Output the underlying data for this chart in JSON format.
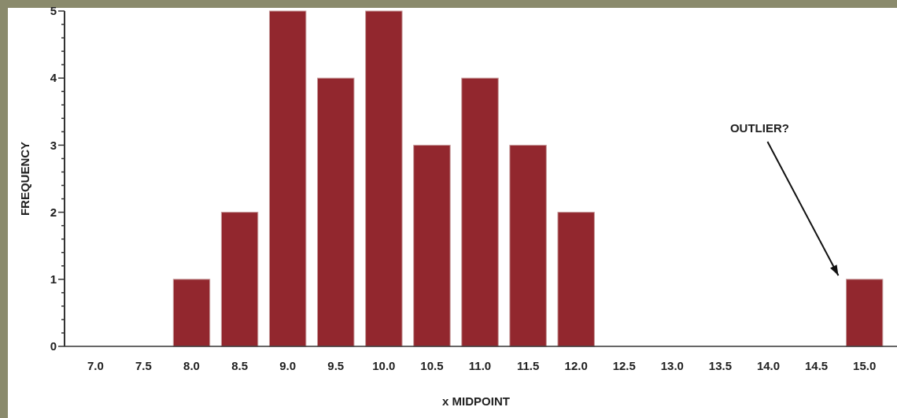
{
  "chart_data": {
    "type": "bar",
    "xlabel": "x MIDPOINT",
    "ylabel": "FREQUENCY",
    "categories": [
      "7.0",
      "7.5",
      "8.0",
      "8.5",
      "9.0",
      "9.5",
      "10.0",
      "10.5",
      "11.0",
      "11.5",
      "12.0",
      "12.5",
      "13.0",
      "13.5",
      "14.0",
      "14.5",
      "15.0"
    ],
    "values": [
      0,
      0,
      1,
      2,
      5,
      4,
      5,
      3,
      4,
      3,
      2,
      0,
      0,
      0,
      0,
      0,
      1
    ],
    "color": "#92272e",
    "ylim": [
      0,
      5
    ],
    "yticks": [
      0,
      {
        "value": 0.2,
        "label": null
      },
      {
        "value": 0.4,
        "label": null
      },
      {
        "value": 0.6,
        "label": null
      },
      {
        "value": 0.8,
        "label": null
      },
      1,
      {
        "value": 1.2,
        "label": null
      },
      {
        "value": 1.4,
        "label": null
      },
      {
        "value": 1.6,
        "label": null
      },
      {
        "value": 1.8,
        "label": null
      },
      2,
      {
        "value": 2.2,
        "label": null
      },
      {
        "value": 2.4,
        "label": null
      },
      {
        "value": 2.6,
        "label": null
      },
      {
        "value": 2.8,
        "label": null
      },
      3,
      {
        "value": 3.2,
        "label": null
      },
      {
        "value": 3.4,
        "label": null
      },
      {
        "value": 3.6,
        "label": null
      },
      {
        "value": 3.8,
        "label": null
      },
      4,
      {
        "value": 4.2,
        "label": null
      },
      {
        "value": 4.4,
        "label": null
      },
      {
        "value": 4.6,
        "label": null
      },
      {
        "value": 4.8,
        "label": null
      },
      5
    ],
    "grid": false,
    "annotations": [
      "OUTLIER?"
    ]
  }
}
